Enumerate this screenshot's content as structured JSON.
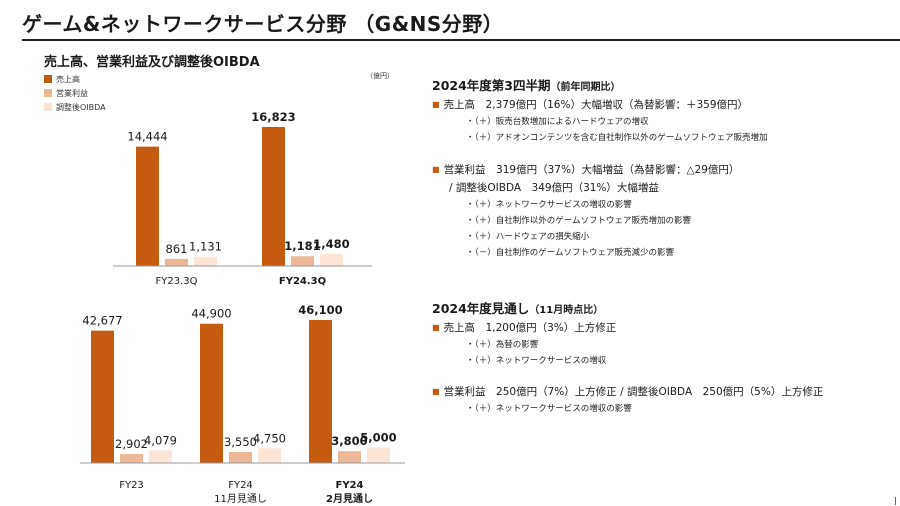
{
  "page": {
    "title": "ゲーム&ネットワークサービス分野 （G&NS分野）"
  },
  "colors": {
    "revenue": "#c55a11",
    "operating_income": "#edb897",
    "adjusted_oibda": "#fbe5d6",
    "bullet": "#c55a11"
  },
  "chart_panel": {
    "title": "売上高、営業利益及び調整後OIBDA",
    "unit": "（億円）",
    "legend": [
      "売上高",
      "営業利益",
      "調整後OIBDA"
    ]
  },
  "chart_data": [
    {
      "type": "bar",
      "categories": [
        "FY23.3Q",
        "FY24.3Q"
      ],
      "categories_bold": [
        false,
        true
      ],
      "series": [
        {
          "name": "売上高",
          "values": [
            14444,
            16823
          ],
          "labels": [
            "14,444",
            "16,823"
          ]
        },
        {
          "name": "営業利益",
          "values": [
            861,
            1181
          ],
          "labels": [
            "861",
            "1,181"
          ]
        },
        {
          "name": "調整後OIBDA",
          "values": [
            1131,
            1480
          ],
          "labels": [
            "1,131",
            "1,480"
          ]
        }
      ]
    },
    {
      "type": "bar",
      "categories": [
        [
          "FY23"
        ],
        [
          "FY24",
          "11月見通し"
        ],
        [
          "FY24",
          "2月見通し"
        ]
      ],
      "categories_bold": [
        false,
        false,
        true
      ],
      "series": [
        {
          "name": "売上高",
          "values": [
            42677,
            44900,
            46100
          ],
          "labels": [
            "42,677",
            "44,900",
            "46,100"
          ]
        },
        {
          "name": "営業利益",
          "values": [
            2902,
            3550,
            3800
          ],
          "labels": [
            "2,902",
            "3,550",
            "3,800"
          ]
        },
        {
          "name": "調整後OIBDA",
          "values": [
            4079,
            4750,
            5000
          ],
          "labels": [
            "4,079",
            "4,750",
            "5,000"
          ]
        }
      ]
    }
  ],
  "q3": {
    "heading": "2024年度第3四半期",
    "heading_sub": "（前年同期比）",
    "revenue": "売上高　2,379億円（16%）大幅増収（為替影響：＋359億円）",
    "revenue_details": [
      "・（＋）販売台数増加によるハードウェアの増収",
      "・（＋）アドオンコンテンツを含む自社制作以外のゲームソフトウェア販売増加"
    ],
    "income": "営業利益　319億円（37%）大幅増益（為替影響：△29億円）",
    "oibda": "/ 調整後OIBDA　349億円（31%）大幅増益",
    "income_details": [
      "・（＋）ネットワークサービスの増収の影響",
      "・（＋）自社制作以外のゲームソフトウェア販売増加の影響",
      "・（＋）ハードウェアの損失縮小",
      "・（－）自社制作のゲームソフトウェア販売減少の影響"
    ]
  },
  "outlook": {
    "heading": "2024年度見通し",
    "heading_sub": "（11月時点比）",
    "revenue": "売上高　1,200億円（3%）上方修正",
    "revenue_details": [
      "・（＋）為替の影響",
      "・（＋）ネットワークサービスの増収"
    ],
    "income": "営業利益　250億円（7%）上方修正 / 調整後OIBDA　250億円（5%）上方修正",
    "income_details": [
      "・（＋）ネットワークサービスの増収の影響"
    ]
  }
}
